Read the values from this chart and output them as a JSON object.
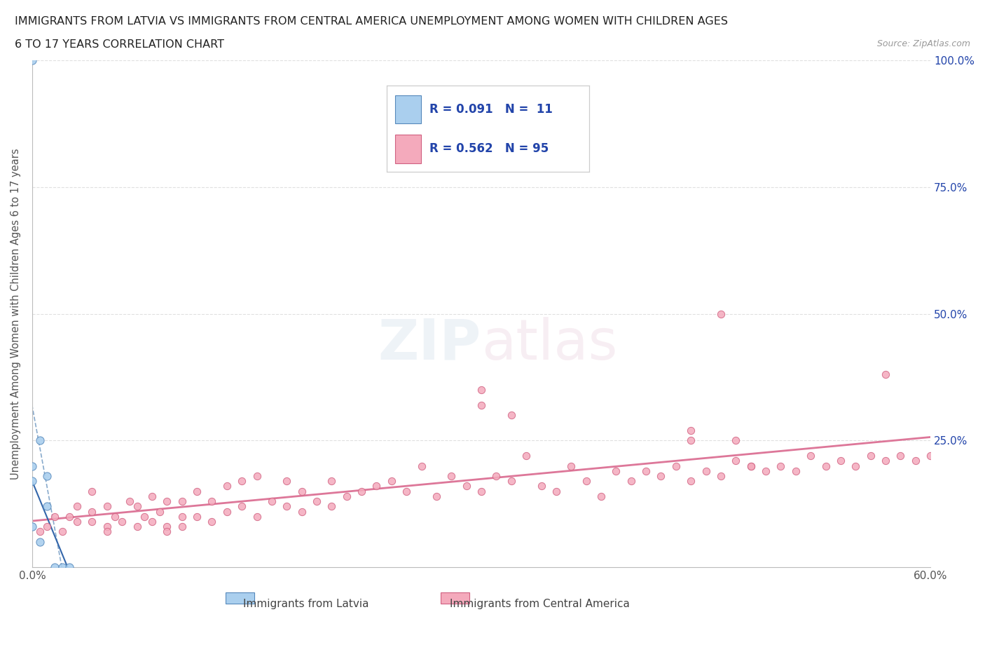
{
  "title_line1": "IMMIGRANTS FROM LATVIA VS IMMIGRANTS FROM CENTRAL AMERICA UNEMPLOYMENT AMONG WOMEN WITH CHILDREN AGES",
  "title_line2": "6 TO 17 YEARS CORRELATION CHART",
  "source": "Source: ZipAtlas.com",
  "ylabel": "Unemployment Among Women with Children Ages 6 to 17 years",
  "xlim": [
    0.0,
    0.6
  ],
  "ylim": [
    0.0,
    1.0
  ],
  "latvia_color": "#aacfee",
  "latvia_edge": "#5588bb",
  "central_america_color": "#f4aabc",
  "central_america_edge": "#d06080",
  "trendline_latvia_solid_color": "#3366aa",
  "trendline_latvia_dash_color": "#88aacc",
  "trendline_central_color": "#dd7799",
  "legend_text_color": "#2244aa",
  "watermark_top": "ZIP",
  "watermark_bot": "atlas",
  "background_color": "#ffffff",
  "grid_color": "#e0e0e0",
  "latvia_x": [
    0.0,
    0.0,
    0.0,
    0.0,
    0.005,
    0.005,
    0.01,
    0.01,
    0.015,
    0.02,
    0.025
  ],
  "latvia_y": [
    1.0,
    0.2,
    0.17,
    0.08,
    0.25,
    0.05,
    0.18,
    0.12,
    0.0,
    0.0,
    0.0
  ],
  "ca_x": [
    0.005,
    0.01,
    0.015,
    0.02,
    0.025,
    0.03,
    0.03,
    0.04,
    0.04,
    0.04,
    0.05,
    0.05,
    0.05,
    0.055,
    0.06,
    0.065,
    0.07,
    0.07,
    0.075,
    0.08,
    0.08,
    0.085,
    0.09,
    0.09,
    0.09,
    0.1,
    0.1,
    0.1,
    0.11,
    0.11,
    0.12,
    0.12,
    0.13,
    0.13,
    0.14,
    0.14,
    0.15,
    0.15,
    0.16,
    0.17,
    0.17,
    0.18,
    0.18,
    0.19,
    0.2,
    0.2,
    0.21,
    0.22,
    0.23,
    0.24,
    0.25,
    0.26,
    0.27,
    0.28,
    0.29,
    0.3,
    0.31,
    0.32,
    0.33,
    0.34,
    0.35,
    0.36,
    0.37,
    0.38,
    0.39,
    0.4,
    0.41,
    0.42,
    0.43,
    0.44,
    0.45,
    0.46,
    0.47,
    0.48,
    0.49,
    0.5,
    0.51,
    0.52,
    0.53,
    0.54,
    0.55,
    0.56,
    0.57,
    0.58,
    0.59,
    0.6,
    0.44,
    0.44,
    0.3,
    0.3,
    0.32,
    0.46,
    0.47,
    0.48,
    0.57
  ],
  "ca_y": [
    0.07,
    0.08,
    0.1,
    0.07,
    0.1,
    0.09,
    0.12,
    0.09,
    0.11,
    0.15,
    0.08,
    0.12,
    0.07,
    0.1,
    0.09,
    0.13,
    0.08,
    0.12,
    0.1,
    0.09,
    0.14,
    0.11,
    0.08,
    0.13,
    0.07,
    0.1,
    0.13,
    0.08,
    0.1,
    0.15,
    0.09,
    0.13,
    0.11,
    0.16,
    0.12,
    0.17,
    0.1,
    0.18,
    0.13,
    0.12,
    0.17,
    0.11,
    0.15,
    0.13,
    0.12,
    0.17,
    0.14,
    0.15,
    0.16,
    0.17,
    0.15,
    0.2,
    0.14,
    0.18,
    0.16,
    0.15,
    0.18,
    0.17,
    0.22,
    0.16,
    0.15,
    0.2,
    0.17,
    0.14,
    0.19,
    0.17,
    0.19,
    0.18,
    0.2,
    0.17,
    0.19,
    0.18,
    0.21,
    0.2,
    0.19,
    0.2,
    0.19,
    0.22,
    0.2,
    0.21,
    0.2,
    0.22,
    0.21,
    0.22,
    0.21,
    0.22,
    0.25,
    0.27,
    0.35,
    0.32,
    0.3,
    0.5,
    0.25,
    0.2,
    0.38
  ]
}
